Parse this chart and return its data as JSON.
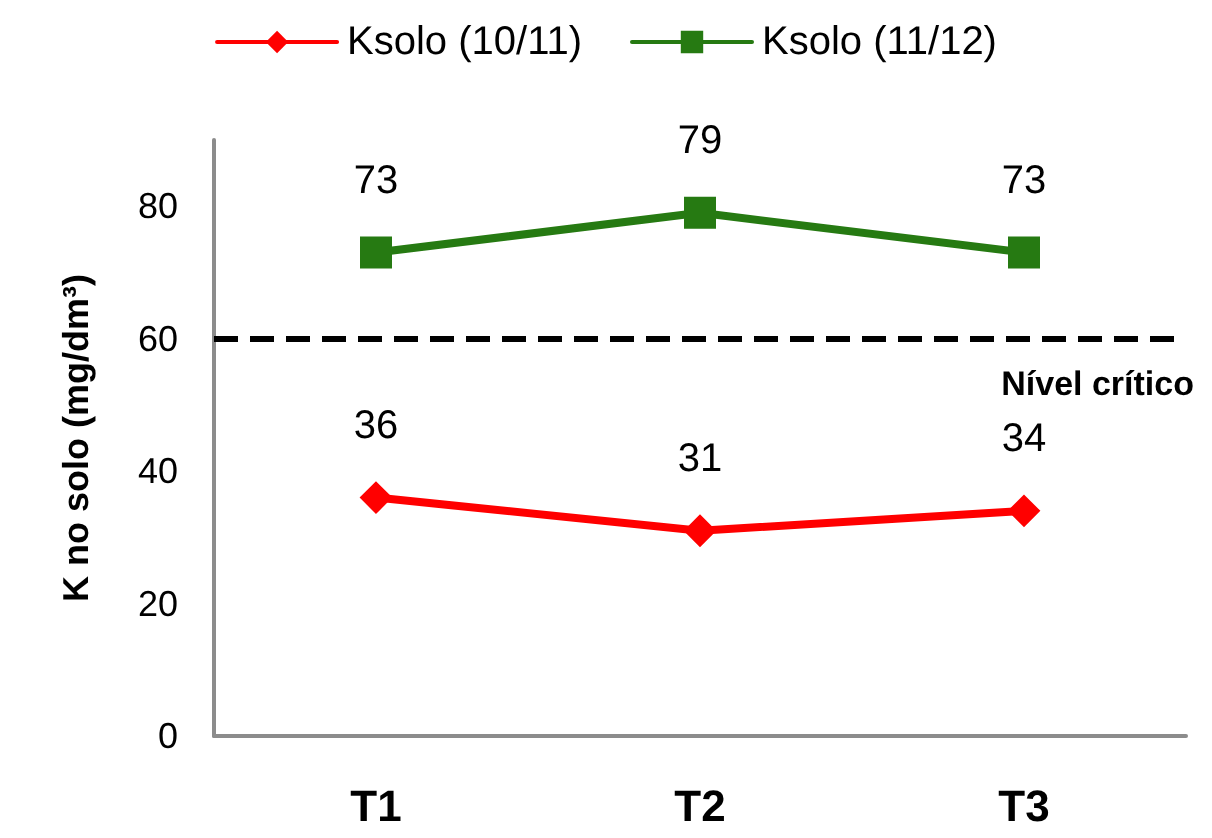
{
  "chart_data": {
    "type": "line",
    "ylabel": "K no solo (mg/dm³)",
    "categories": [
      "T1",
      "T2",
      "T3"
    ],
    "series": [
      {
        "name": "Ksolo (10/11)",
        "color": "#ff0000",
        "values": [
          36,
          31,
          34
        ],
        "marker": "diamond"
      },
      {
        "name": "Ksolo (11/12)",
        "color": "#267a12",
        "values": [
          73,
          79,
          73
        ],
        "marker": "square"
      }
    ],
    "ylim": [
      0,
      90
    ],
    "yticks": [
      0,
      20,
      40,
      60,
      80
    ],
    "grid": false,
    "legend": "top",
    "data_labels": true,
    "line_style": "solid",
    "ref_lines": [
      {
        "axis": "y",
        "value": 60,
        "label": "Nível crítico",
        "color": "#000000",
        "line_style": "dashed"
      }
    ]
  }
}
